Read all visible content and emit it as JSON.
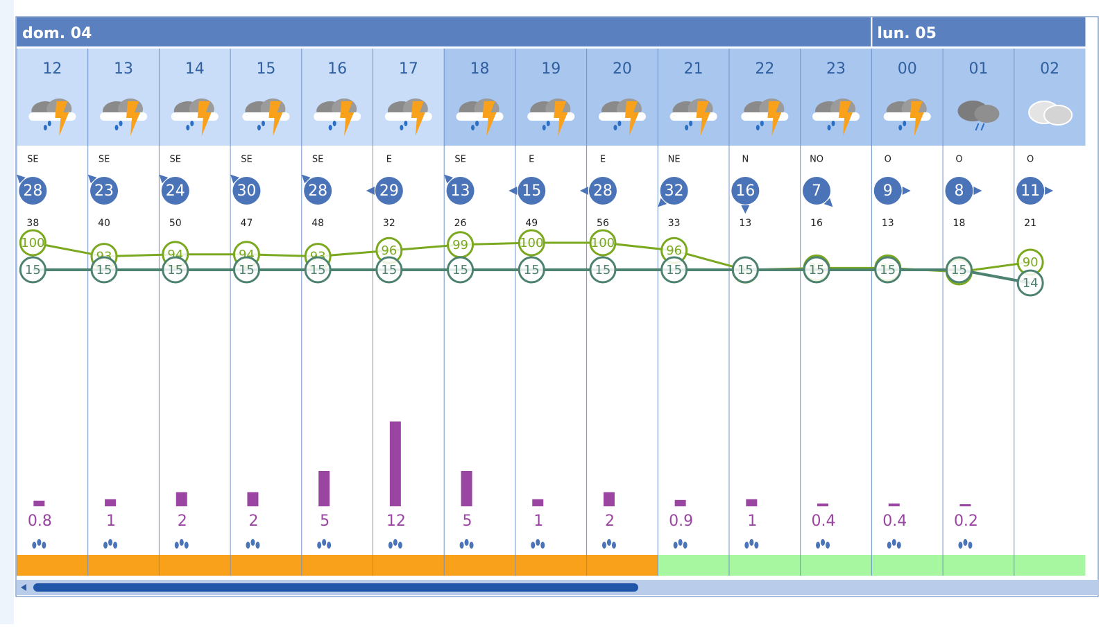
{
  "days": [
    {
      "label": "dom. 04",
      "hours": [
        "12",
        "13",
        "14",
        "15",
        "16",
        "17",
        "18",
        "19",
        "20",
        "21",
        "22",
        "23"
      ]
    },
    {
      "label": "lun. 05",
      "hours": [
        "00",
        "01",
        "02"
      ]
    }
  ],
  "icons": [
    "storm",
    "storm",
    "storm",
    "storm",
    "storm",
    "storm",
    "storm",
    "storm",
    "storm",
    "storm",
    "storm",
    "storm",
    "storm",
    "rain",
    "cloud"
  ],
  "wind_direction": [
    "SE",
    "SE",
    "SE",
    "SE",
    "SE",
    "E",
    "SE",
    "E",
    "E",
    "NE",
    "N",
    "NO",
    "O",
    "O",
    "O"
  ],
  "wind_speed": [
    28,
    23,
    24,
    30,
    28,
    29,
    13,
    15,
    28,
    32,
    16,
    7,
    9,
    8,
    11
  ],
  "gusts": [
    38,
    40,
    50,
    47,
    48,
    32,
    26,
    49,
    56,
    33,
    13,
    16,
    13,
    18,
    21
  ],
  "humidity": [
    100,
    93,
    94,
    94,
    93,
    96,
    99,
    100,
    100,
    96,
    86,
    87,
    87,
    85,
    90
  ],
  "temperature": [
    15,
    15,
    15,
    15,
    15,
    15,
    15,
    15,
    15,
    15,
    15,
    15,
    15,
    15,
    14
  ],
  "precipitation": [
    0.8,
    1,
    2,
    2,
    5,
    12,
    5,
    1,
    2,
    0.9,
    1,
    0.4,
    0.4,
    0.2,
    null
  ],
  "alert_colors": [
    "#f9a11b",
    "#f9a11b",
    "#f9a11b",
    "#f9a11b",
    "#f9a11b",
    "#f9a11b",
    "#f9a11b",
    "#f9a11b",
    "#f9a11b",
    "#a6f7a0",
    "#a6f7a0",
    "#a6f7a0",
    "#a6f7a0",
    "#a6f7a0",
    "#a6f7a0"
  ]
}
